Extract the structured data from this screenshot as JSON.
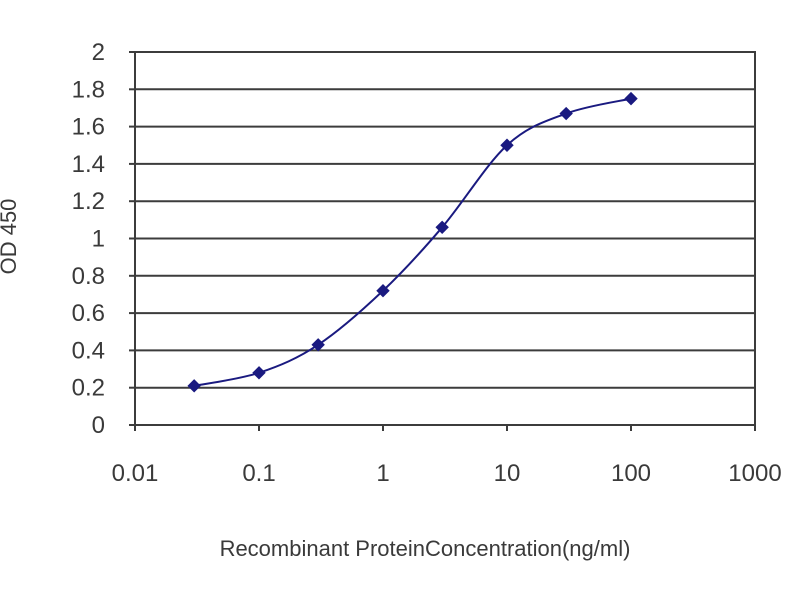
{
  "chart_data": {
    "type": "line",
    "title": "",
    "xlabel": "Recombinant ProteinConcentration(ng/ml)",
    "ylabel": "OD 450",
    "x_scale": "log",
    "xlim": [
      0.01,
      1000
    ],
    "ylim": [
      0,
      2
    ],
    "x_tick_labels": [
      "0.01",
      "0.1",
      "1",
      "10",
      "100",
      "1000"
    ],
    "y_tick_labels": [
      "0",
      "0.2",
      "0.4",
      "0.6",
      "0.8",
      "1",
      "1.2",
      "1.4",
      "1.6",
      "1.8",
      "2"
    ],
    "grid": "horizontal",
    "legend": "none",
    "series": [
      {
        "x": [
          0.03,
          0.1,
          0.3,
          1,
          3,
          10,
          30,
          100
        ],
        "y": [
          0.21,
          0.28,
          0.43,
          0.72,
          1.06,
          1.5,
          1.67,
          1.75
        ],
        "color": "#1a1a80",
        "marker": "diamond"
      }
    ],
    "colors": {
      "plot_background": "#ffffff",
      "gridline": "#3c3c3c",
      "frame": "#3c3c3c",
      "series": "#1a1a80"
    }
  }
}
